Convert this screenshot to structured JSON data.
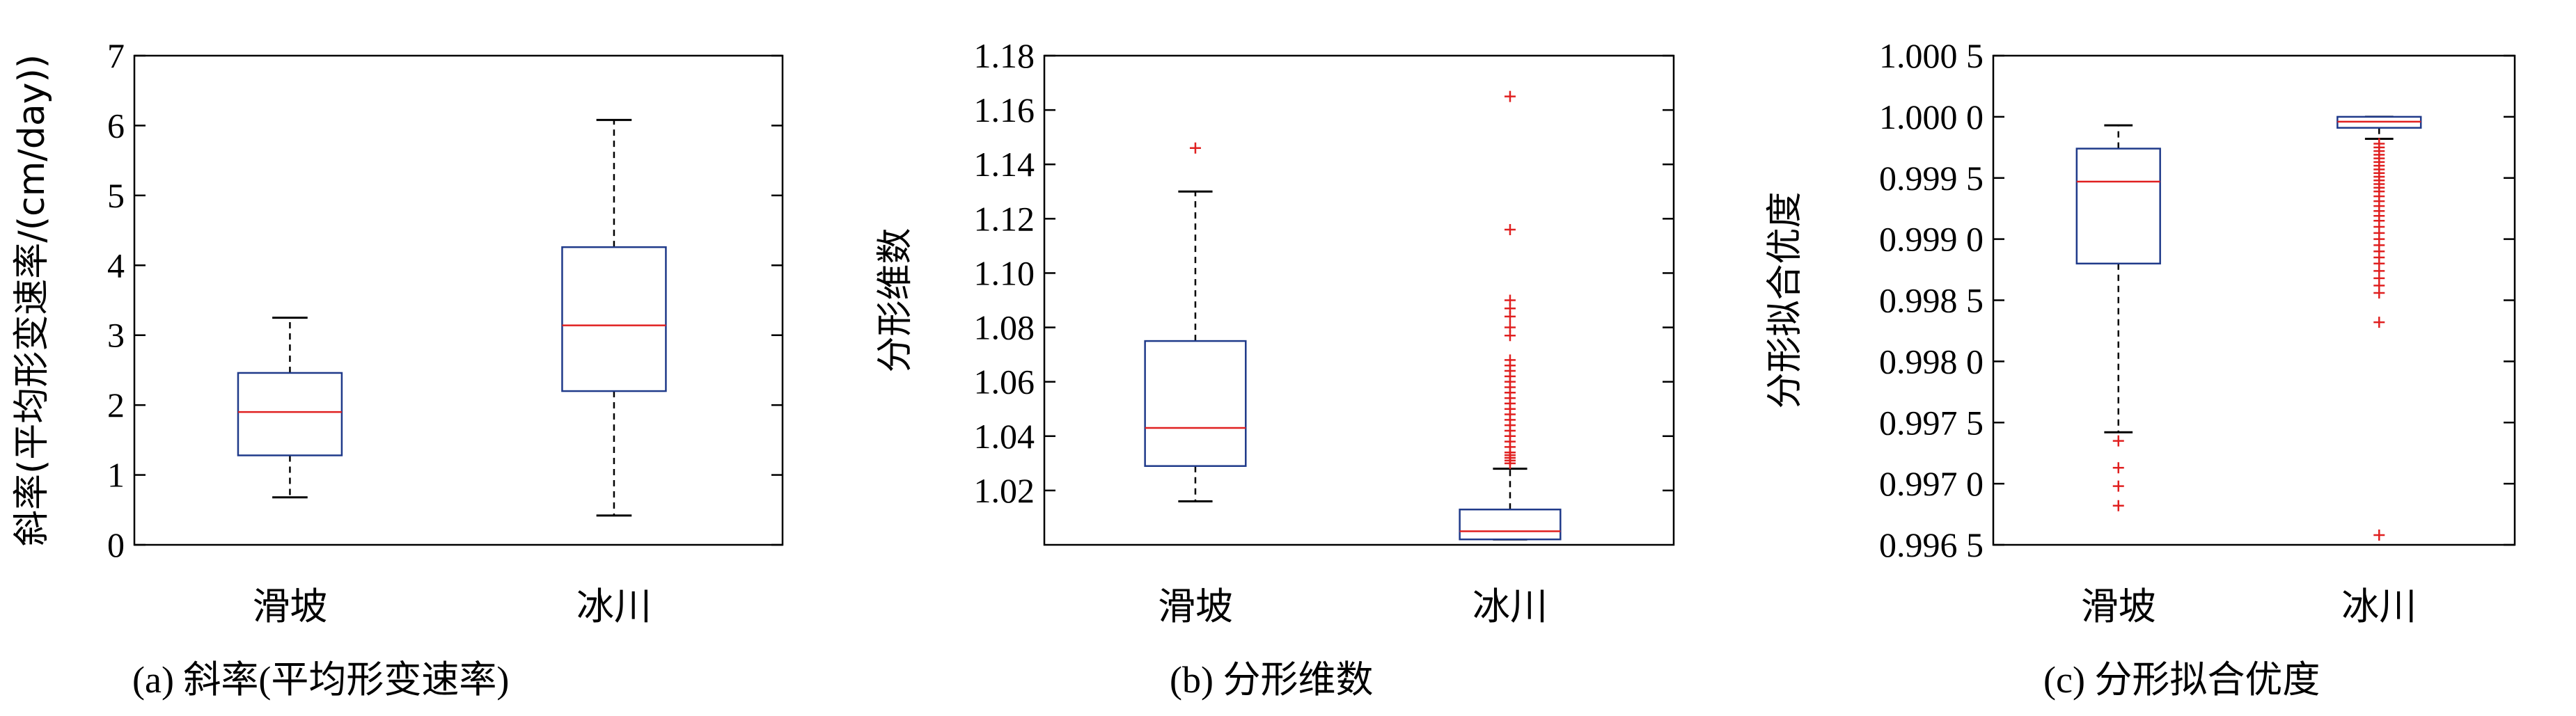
{
  "chart_data": [
    {
      "type": "box",
      "caption": "(a) 斜率(平均形变速率)",
      "ylabel": "斜率(平均形变速率/(cm/day))",
      "ylim": [
        0,
        7
      ],
      "yticks": [
        0,
        1,
        2,
        3,
        4,
        5,
        6,
        7
      ],
      "ytick_labels": [
        "0",
        "1",
        "2",
        "3",
        "4",
        "5",
        "6",
        "7"
      ],
      "categories": [
        "滑坡",
        "冰川"
      ],
      "boxes": [
        {
          "whisker_low": 0.68,
          "q1": 1.28,
          "median": 1.9,
          "q3": 2.46,
          "whisker_high": 3.25,
          "outliers": []
        },
        {
          "whisker_low": 0.42,
          "q1": 2.2,
          "median": 3.14,
          "q3": 4.26,
          "whisker_high": 6.08,
          "outliers": []
        }
      ]
    },
    {
      "type": "box",
      "caption": "(b) 分形维数",
      "ylabel": "分形维数",
      "ylim": [
        1.0,
        1.18
      ],
      "yticks": [
        1.02,
        1.04,
        1.06,
        1.08,
        1.1,
        1.12,
        1.14,
        1.16,
        1.18
      ],
      "ytick_labels": [
        "1.02",
        "1.04",
        "1.06",
        "1.08",
        "1.10",
        "1.12",
        "1.14",
        "1.16",
        "1.18"
      ],
      "categories": [
        "滑坡",
        "冰川"
      ],
      "boxes": [
        {
          "whisker_low": 1.016,
          "q1": 1.029,
          "median": 1.043,
          "q3": 1.075,
          "whisker_high": 1.13,
          "outliers": [
            1.146
          ]
        },
        {
          "whisker_low": 1.002,
          "q1": 1.002,
          "median": 1.005,
          "q3": 1.013,
          "whisker_high": 1.028,
          "outliers": [
            1.165,
            1.116,
            1.09,
            1.087,
            1.084,
            1.08,
            1.077,
            1.068,
            1.066,
            1.064,
            1.062,
            1.06,
            1.058,
            1.056,
            1.054,
            1.052,
            1.05,
            1.048,
            1.046,
            1.044,
            1.042,
            1.04,
            1.038,
            1.036,
            1.034,
            1.033,
            1.032,
            1.031,
            1.03
          ]
        }
      ]
    },
    {
      "type": "box",
      "caption": "(c) 分形拟合优度",
      "ylabel": "分形拟合优度",
      "ylim": [
        0.9965,
        1.0005
      ],
      "yticks": [
        0.9965,
        0.997,
        0.9975,
        0.998,
        0.9985,
        0.999,
        0.9995,
        1.0,
        1.0005
      ],
      "ytick_labels": [
        "0.996 5",
        "0.997 0",
        "0.997 5",
        "0.998 0",
        "0.998 5",
        "0.999 0",
        "0.999 5",
        "1.000 0",
        "1.000 5"
      ],
      "categories": [
        "滑坡",
        "冰川"
      ],
      "boxes": [
        {
          "whisker_low": 0.99742,
          "q1": 0.9988,
          "median": 0.99947,
          "q3": 0.99974,
          "whisker_high": 0.99993,
          "outliers": [
            0.99735,
            0.99713,
            0.99698,
            0.99682
          ]
        },
        {
          "whisker_low": 0.99982,
          "q1": 0.99991,
          "median": 0.99996,
          "q3": 1.0,
          "whisker_high": 1.0,
          "outliers": [
            0.99978,
            0.99975,
            0.99972,
            0.99969,
            0.99966,
            0.99963,
            0.9996,
            0.99957,
            0.99954,
            0.99951,
            0.99948,
            0.99945,
            0.99942,
            0.99939,
            0.99935,
            0.99931,
            0.99927,
            0.99923,
            0.99919,
            0.99915,
            0.9991,
            0.99905,
            0.999,
            0.99895,
            0.9989,
            0.99885,
            0.9988,
            0.99874,
            0.99868,
            0.99862,
            0.99856,
            0.99832,
            0.99658
          ]
        }
      ]
    }
  ],
  "colors": {
    "box": "#1f3a8a",
    "median": "#e02020",
    "outlier": "#e02020",
    "axis": "#000000"
  }
}
